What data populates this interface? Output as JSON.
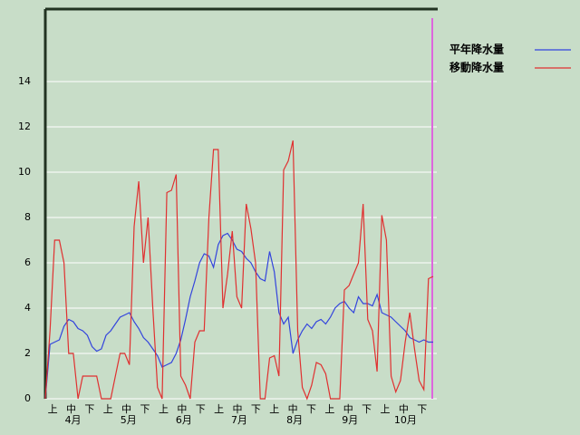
{
  "chart_data": {
    "type": "line",
    "categories": [
      null,
      null,
      "上",
      null,
      null,
      null,
      "中",
      null,
      null,
      null,
      "下",
      null,
      null,
      null,
      "上",
      null,
      null,
      null,
      "中",
      null,
      null,
      null,
      "下",
      null,
      null,
      null,
      "上",
      null,
      null,
      null,
      "中",
      null,
      null,
      null,
      "下",
      null,
      null,
      null,
      "上",
      null,
      null,
      null,
      "中",
      null,
      null,
      null,
      "下",
      null,
      null,
      null,
      "上",
      null,
      null,
      null,
      "中",
      null,
      null,
      null,
      "下",
      null,
      null,
      null,
      "上",
      null,
      null,
      null,
      "中",
      null,
      null,
      null,
      "下",
      null,
      null,
      null,
      "上",
      null,
      null,
      null,
      "中",
      null,
      null,
      null,
      "下",
      null
    ],
    "months": [
      "4月",
      "5月",
      "6月",
      "7月",
      "8月",
      "9月",
      "10月"
    ],
    "series": [
      {
        "name": "平年降水量",
        "color": "#3344dd",
        "values": [
          0,
          2.4,
          2.5,
          2.6,
          3.2,
          3.5,
          3.4,
          3.1,
          3.0,
          2.8,
          2.3,
          2.1,
          2.2,
          2.8,
          3.0,
          3.3,
          3.6,
          3.7,
          3.8,
          3.4,
          3.1,
          2.7,
          2.5,
          2.2,
          1.9,
          1.4,
          1.5,
          1.6,
          2.0,
          2.6,
          3.5,
          4.5,
          5.2,
          6.0,
          6.4,
          6.3,
          5.8,
          6.8,
          7.2,
          7.3,
          7.0,
          6.6,
          6.5,
          6.2,
          6.0,
          5.6,
          5.3,
          5.2,
          6.5,
          5.6,
          3.8,
          3.3,
          3.6,
          2.0,
          2.6,
          3.0,
          3.3,
          3.1,
          3.4,
          3.5,
          3.3,
          3.6,
          4.0,
          4.2,
          4.3,
          4.0,
          3.8,
          4.5,
          4.2,
          4.2,
          4.1,
          4.6,
          3.8,
          3.7,
          3.6,
          3.4,
          3.2,
          3.0,
          2.7,
          2.6,
          2.5,
          2.6,
          2.5,
          2.5
        ]
      },
      {
        "name": "移動降水量",
        "color": "#e03030",
        "values": [
          0,
          3,
          7,
          7,
          6,
          2,
          2,
          0,
          1,
          1,
          1,
          1,
          0,
          0,
          0,
          1,
          2,
          2,
          1.5,
          7.6,
          9.6,
          6,
          8,
          4,
          0.5,
          0,
          9.1,
          9.2,
          9.9,
          1,
          0.6,
          0,
          2.5,
          3,
          3,
          8,
          11,
          11,
          4,
          5.5,
          7.4,
          4.5,
          4,
          8.6,
          7.5,
          6,
          0,
          0,
          1.8,
          1.9,
          1,
          10.1,
          10.5,
          11.4,
          3,
          0.5,
          0,
          0.6,
          1.6,
          1.5,
          1.1,
          0,
          0,
          0,
          4.8,
          5,
          5.5,
          6,
          8.6,
          3.5,
          3,
          1.2,
          8.1,
          7,
          1,
          0.3,
          0.8,
          2.5,
          3.8,
          2.2,
          0.8,
          0.4,
          5.3,
          5.4
        ]
      }
    ],
    "ylim": [
      0,
      17.2
    ],
    "yticks": [
      0,
      2,
      4,
      6,
      8,
      10,
      12,
      14
    ],
    "grid": true
  }
}
